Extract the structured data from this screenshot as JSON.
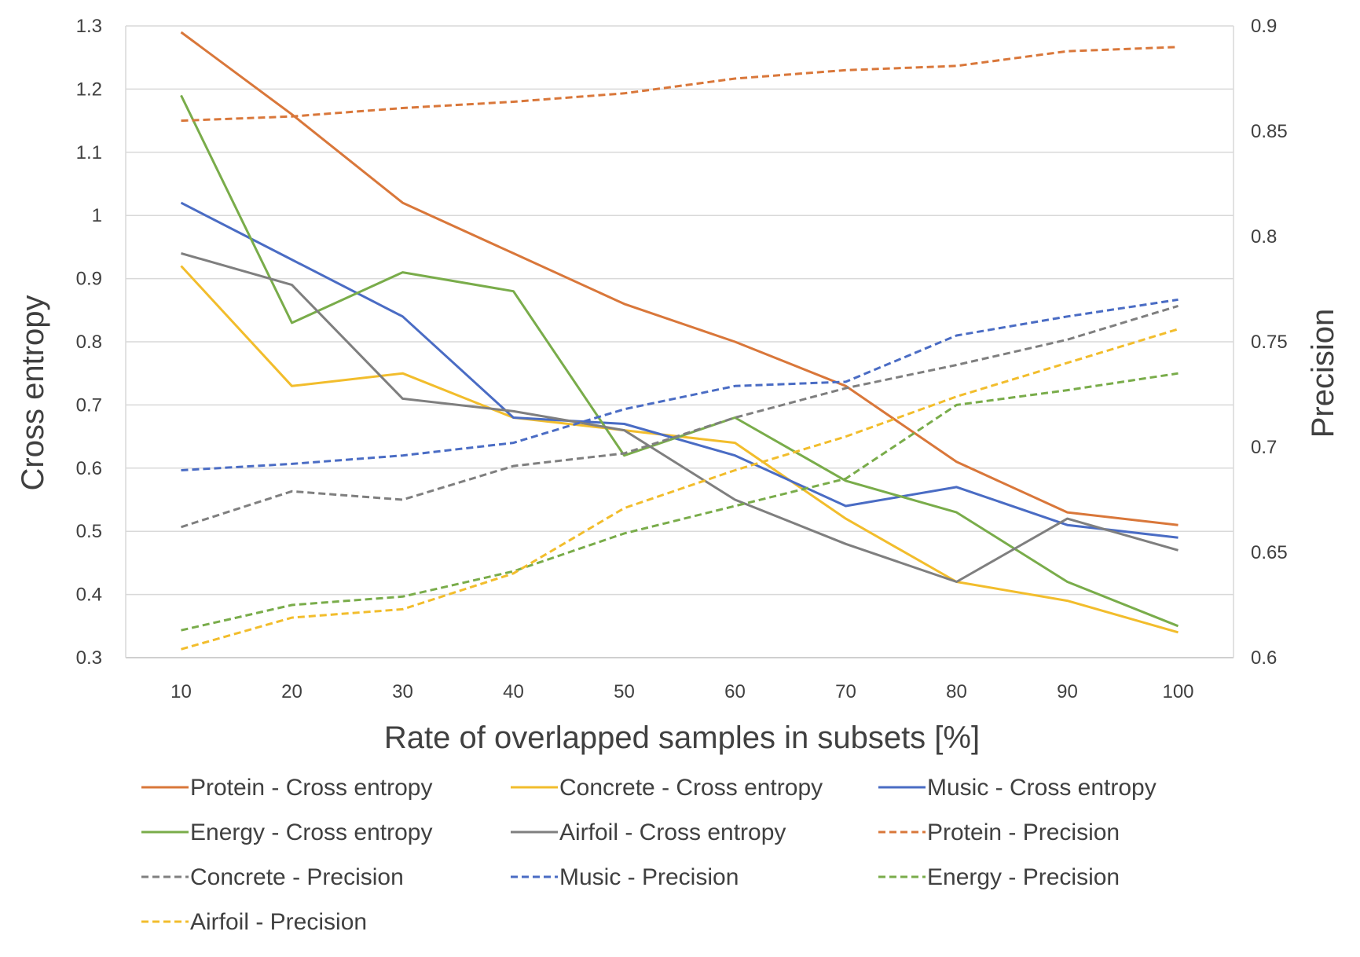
{
  "chart_data": {
    "type": "line",
    "title": "",
    "xlabel": "Rate of overlapped samples in subsets [%]",
    "ylabel": "Cross entropy",
    "y2label": "Precision",
    "x": [
      10,
      20,
      30,
      40,
      50,
      60,
      70,
      80,
      90,
      100
    ],
    "x_tick_labels": [
      "10",
      "20",
      "30",
      "40",
      "50",
      "60",
      "70",
      "80",
      "90",
      "100"
    ],
    "ylim": [
      0.3,
      1.3
    ],
    "y_tick_labels": [
      "0.3",
      "0.4",
      "0.5",
      "0.6",
      "0.7",
      "0.8",
      "0.9",
      "1",
      "1.1",
      "1.2",
      "1.3"
    ],
    "y_ticks": [
      0.3,
      0.4,
      0.5,
      0.6,
      0.7,
      0.8,
      0.9,
      1.0,
      1.1,
      1.2,
      1.3
    ],
    "y2lim": [
      0.6,
      0.9
    ],
    "y2_tick_labels": [
      "0.6",
      "0.65",
      "0.7",
      "0.75",
      "0.8",
      "0.85",
      "0.9"
    ],
    "y2_ticks": [
      0.6,
      0.65,
      0.7,
      0.75,
      0.8,
      0.85,
      0.9
    ],
    "grid": true,
    "legend_position": "bottom",
    "series": [
      {
        "name": "Protein - Cross entropy",
        "axis": "left",
        "dash": "solid",
        "color": "#D9773A",
        "values": [
          1.29,
          1.16,
          1.02,
          0.94,
          0.86,
          0.8,
          0.73,
          0.61,
          0.53,
          0.51
        ]
      },
      {
        "name": "Concrete - Cross entropy",
        "axis": "left",
        "dash": "solid",
        "color": "#F2BD2C",
        "values": [
          0.92,
          0.73,
          0.75,
          0.68,
          0.66,
          0.64,
          0.52,
          0.42,
          0.39,
          0.34
        ]
      },
      {
        "name": "Music - Cross entropy",
        "axis": "left",
        "dash": "solid",
        "color": "#4A6CC4",
        "values": [
          1.02,
          0.93,
          0.84,
          0.68,
          0.67,
          0.62,
          0.54,
          0.57,
          0.51,
          0.49
        ]
      },
      {
        "name": "Energy - Cross entropy",
        "axis": "left",
        "dash": "solid",
        "color": "#79AC4A",
        "values": [
          1.19,
          0.83,
          0.91,
          0.88,
          0.62,
          0.68,
          0.58,
          0.53,
          0.42,
          0.35
        ]
      },
      {
        "name": "Airfoil - Cross entropy",
        "axis": "left",
        "dash": "solid",
        "color": "#7F7F7F",
        "values": [
          0.94,
          0.89,
          0.71,
          0.69,
          0.66,
          0.55,
          0.48,
          0.42,
          0.52,
          0.47
        ]
      },
      {
        "name": "Protein - Precision",
        "axis": "right",
        "dash": "dashed",
        "color": "#D9773A",
        "values": [
          0.855,
          0.857,
          0.861,
          0.864,
          0.868,
          0.875,
          0.879,
          0.881,
          0.888,
          0.89
        ]
      },
      {
        "name": "Concrete - Precision",
        "axis": "right",
        "dash": "dashed",
        "color": "#7F7F7F",
        "values": [
          0.662,
          0.679,
          0.675,
          0.691,
          0.697,
          0.714,
          0.728,
          0.739,
          0.751,
          0.767
        ]
      },
      {
        "name": "Music - Precision",
        "axis": "right",
        "dash": "dashed",
        "color": "#4A6CC4",
        "values": [
          0.689,
          0.692,
          0.696,
          0.702,
          0.718,
          0.729,
          0.731,
          0.753,
          0.762,
          0.77
        ]
      },
      {
        "name": "Energy - Precision",
        "axis": "right",
        "dash": "dashed",
        "color": "#79AC4A",
        "values": [
          0.613,
          0.625,
          0.629,
          0.641,
          0.659,
          0.672,
          0.685,
          0.72,
          0.727,
          0.735
        ]
      },
      {
        "name": "Airfoil - Precision",
        "axis": "right",
        "dash": "dashed",
        "color": "#F2BD2C",
        "values": [
          0.604,
          0.619,
          0.623,
          0.64,
          0.671,
          0.689,
          0.705,
          0.724,
          0.74,
          0.756
        ]
      }
    ]
  }
}
